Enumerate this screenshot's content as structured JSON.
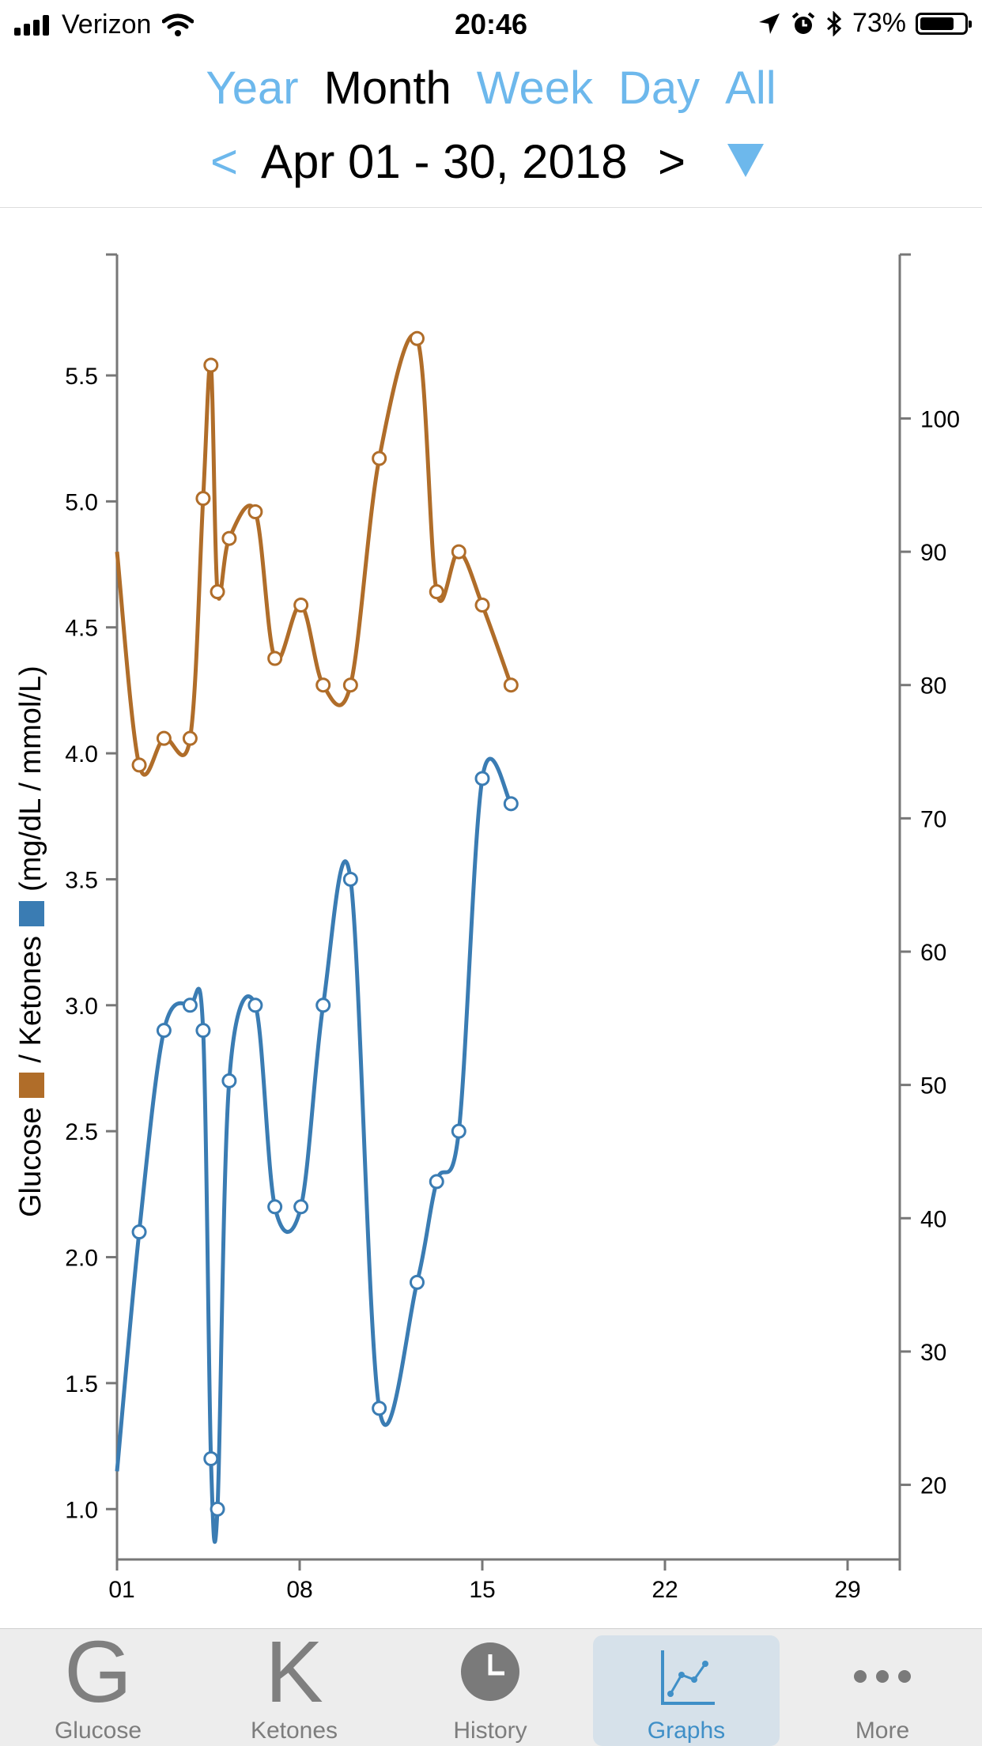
{
  "status_bar": {
    "carrier": "Verizon",
    "time": "20:46",
    "battery": "73%"
  },
  "range_tabs": [
    {
      "label": "Year",
      "active": false
    },
    {
      "label": "Month",
      "active": true
    },
    {
      "label": "Week",
      "active": false
    },
    {
      "label": "Day",
      "active": false
    },
    {
      "label": "All",
      "active": false
    }
  ],
  "date_nav": {
    "prev": "<",
    "label": "Apr 01 - 30, 2018",
    "next": ">"
  },
  "y_axis_label": {
    "glucose": "Glucose",
    "separator": "/ Ketones",
    "units": "(mg/dL / mmol/L)"
  },
  "colors": {
    "glucose": "#b06d29",
    "ketones": "#3a7cb3",
    "accent": "#6db8ec"
  },
  "chart_data": {
    "type": "line",
    "x_ticks": [
      "01",
      "08",
      "15",
      "22",
      "29"
    ],
    "x_tick_values": [
      1,
      8,
      15,
      22,
      29
    ],
    "xlim": [
      1,
      31
    ],
    "left_axis": {
      "ticks": [
        "1.0",
        "1.5",
        "2.0",
        "2.5",
        "3.0",
        "3.5",
        "4.0",
        "4.5",
        "5.0",
        "5.5"
      ],
      "range": [
        0.8,
        5.98
      ]
    },
    "right_axis": {
      "ticks": [
        "20",
        "30",
        "40",
        "50",
        "60",
        "70",
        "80",
        "90",
        "100"
      ],
      "range": [
        14.4,
        112.3
      ]
    },
    "series": [
      {
        "key": "glucose",
        "axis": "right",
        "color": "#b06d29",
        "x": [
          1,
          1.85,
          2.8,
          3.8,
          4.3,
          4.6,
          4.85,
          5.3,
          6.3,
          7.05,
          8.05,
          8.9,
          9.95,
          11.05,
          12.5,
          13.25,
          14.1,
          15.0,
          16.1
        ],
        "y": [
          90,
          74,
          76,
          76,
          94,
          104,
          87,
          91,
          93,
          82,
          86,
          80,
          80,
          97,
          106,
          87,
          90,
          86,
          80
        ],
        "markers_from": 1
      },
      {
        "key": "ketones",
        "axis": "left",
        "color": "#3a7cb3",
        "x": [
          1,
          1.85,
          2.8,
          3.8,
          4.3,
          4.6,
          4.85,
          5.3,
          6.3,
          7.05,
          8.05,
          8.9,
          9.95,
          11.05,
          12.5,
          13.25,
          14.1,
          15.0,
          16.1
        ],
        "y": [
          1.15,
          2.1,
          2.9,
          3.0,
          2.9,
          1.2,
          1.0,
          2.7,
          3.0,
          2.2,
          2.2,
          3.0,
          3.5,
          1.4,
          1.9,
          2.3,
          2.5,
          3.9,
          3.8
        ],
        "markers_from": 1
      }
    ]
  },
  "tab_bar": [
    {
      "label": "Glucose",
      "glyph": "G",
      "icon": "glucose-icon",
      "selected": false
    },
    {
      "label": "Ketones",
      "glyph": "K",
      "icon": "ketones-icon",
      "selected": false
    },
    {
      "label": "History",
      "glyph": "",
      "icon": "clock-icon",
      "selected": false
    },
    {
      "label": "Graphs",
      "glyph": "",
      "icon": "graph-icon",
      "selected": true
    },
    {
      "label": "More",
      "glyph": "",
      "icon": "ellipsis-icon",
      "selected": false
    }
  ]
}
